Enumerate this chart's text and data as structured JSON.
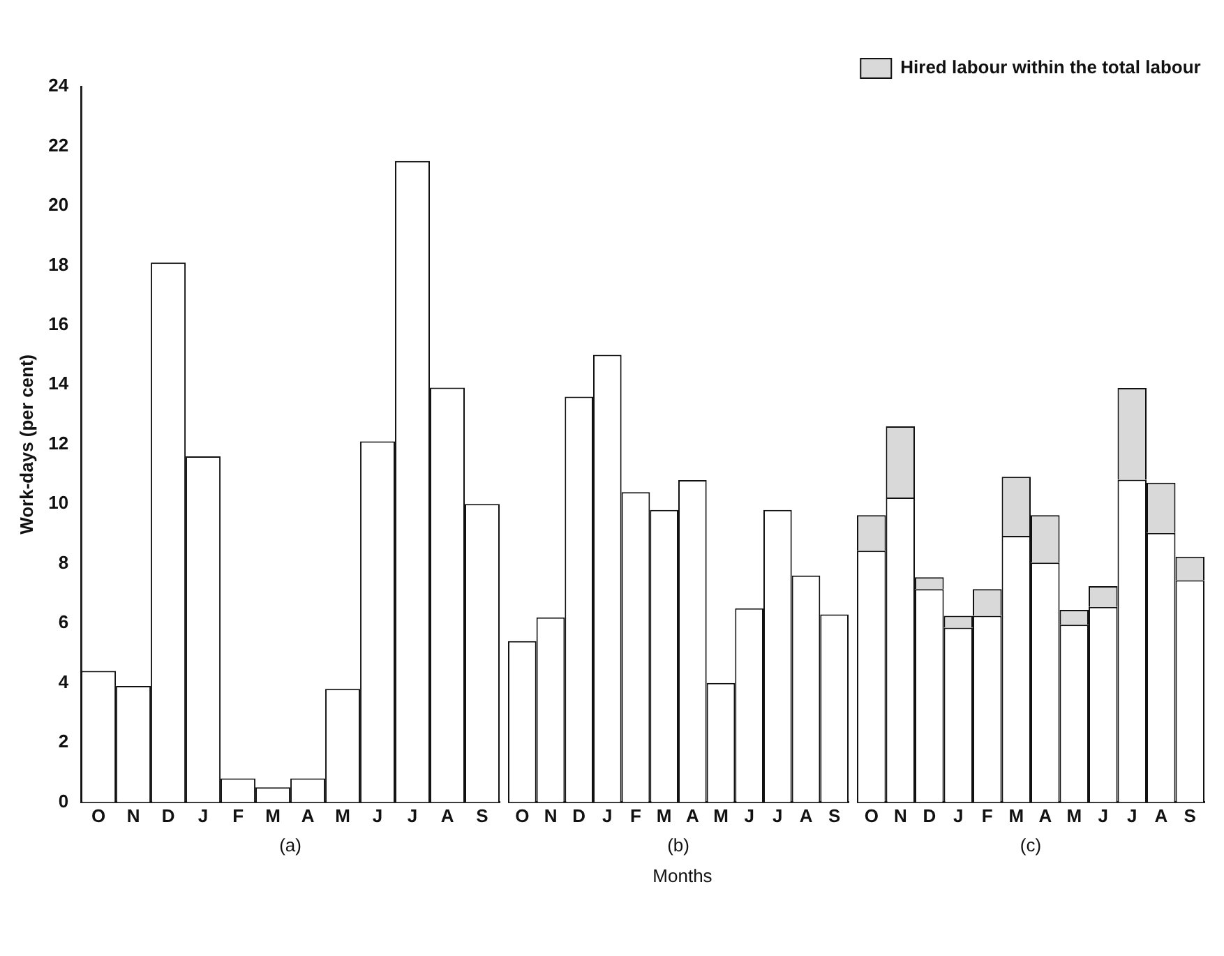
{
  "chart_data": [
    {
      "type": "bar",
      "xlabel": "(a)",
      "ylabel": "Work-days (per cent)",
      "categories": [
        "O",
        "N",
        "D",
        "J",
        "F",
        "M",
        "A",
        "M",
        "J",
        "J",
        "A",
        "S"
      ],
      "values": [
        4.4,
        3.9,
        18.1,
        11.6,
        0.8,
        0.5,
        0.8,
        3.8,
        12.1,
        21.5,
        13.9,
        10.0
      ],
      "color": "#ffffff",
      "ylim": [
        0,
        24
      ],
      "yticks": [
        0,
        2,
        4,
        6,
        8,
        10,
        12,
        14,
        16,
        18,
        20,
        22,
        24
      ],
      "grid": false
    },
    {
      "type": "bar",
      "xlabel": "(b)",
      "annotations": [
        "Months"
      ],
      "categories": [
        "O",
        "N",
        "D",
        "J",
        "F",
        "M",
        "A",
        "M",
        "J",
        "J",
        "A",
        "S"
      ],
      "values": [
        5.4,
        6.2,
        13.6,
        15.0,
        10.4,
        9.8,
        10.8,
        4.0,
        6.5,
        9.8,
        7.6,
        6.3
      ],
      "color": "#ffffff",
      "ylim": [
        0,
        24
      ],
      "tick_labels": "x",
      "grid": false
    },
    {
      "type": "bar",
      "xlabel": "(c)",
      "stacked": true,
      "legend": "top",
      "categories": [
        "O",
        "N",
        "D",
        "J",
        "F",
        "M",
        "A",
        "M",
        "J",
        "J",
        "A",
        "S"
      ],
      "series": [
        {
          "color": "#ffffff",
          "values": [
            8.5,
            10.3,
            7.2,
            5.9,
            6.3,
            9.0,
            8.1,
            6.0,
            6.6,
            10.9,
            9.1,
            7.5
          ]
        },
        {
          "name": "Hired labour within the total labour",
          "color": "#d9d9d9",
          "values": [
            1.2,
            2.4,
            0.4,
            0.4,
            0.9,
            2.0,
            1.6,
            0.5,
            0.7,
            3.1,
            1.7,
            0.8
          ]
        }
      ],
      "ylim": [
        0,
        24
      ],
      "tick_labels": "x",
      "grid": false
    }
  ]
}
